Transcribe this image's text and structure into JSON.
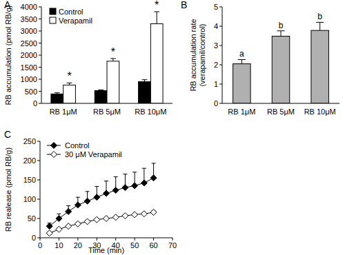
{
  "chart_data": [
    {
      "type": "bar",
      "title": "A",
      "ylabel": "RB accumulation (pmol RB/g)",
      "categories": [
        "RB 1μM",
        "RB 5μM",
        "RB 10μM"
      ],
      "series": [
        {
          "name": "Control",
          "color": "#000000",
          "values": [
            390,
            530,
            900
          ],
          "errors": [
            50,
            30,
            80
          ]
        },
        {
          "name": "Verapamil",
          "color": "#ffffff",
          "values": [
            760,
            1750,
            3300
          ],
          "errors": [
            90,
            110,
            500
          ],
          "annotations": [
            "*",
            "*",
            "*"
          ]
        }
      ],
      "ylim": [
        0,
        4000
      ],
      "yticks": [
        0,
        500,
        1000,
        1500,
        2000,
        2500,
        3000,
        3500,
        4000
      ],
      "legend": "upper-left",
      "grid": false
    },
    {
      "type": "bar",
      "title": "B",
      "ylabel": [
        "RB accumulation rate",
        "(verapamil/control)"
      ],
      "categories": [
        "RB 1μM",
        "RB 5μM",
        "RB 10μM"
      ],
      "series": [
        {
          "color": "#b0b0b0",
          "values": [
            2.05,
            3.48,
            3.78
          ],
          "errors": [
            0.22,
            0.28,
            0.42
          ],
          "annotations": [
            "a",
            "b",
            "b"
          ]
        }
      ],
      "ylim": [
        0,
        5
      ],
      "yticks": [
        0,
        1,
        2,
        3,
        4,
        5
      ],
      "grid": false
    },
    {
      "type": "line",
      "title": "C",
      "xlabel": "Time (min)",
      "ylabel": "RB realease (pmol RB/g)",
      "x": [
        5,
        10,
        15,
        20,
        25,
        30,
        35,
        40,
        45,
        50,
        55,
        60
      ],
      "series": [
        {
          "name": "Control",
          "color": "#000000",
          "marker": "diamond",
          "line_style": "solid",
          "values": [
            30,
            50,
            68,
            85,
            95,
            105,
            115,
            123,
            130,
            135,
            142,
            155
          ],
          "errors": [
            8,
            12,
            15,
            20,
            25,
            28,
            32,
            35,
            35,
            35,
            38,
            38
          ]
        },
        {
          "name": "30 μM Verapamil",
          "color": "#ffffff",
          "marker": "diamond",
          "line_style": "solid",
          "values": [
            12,
            22,
            30,
            36,
            42,
            47,
            50,
            53,
            57,
            60,
            62,
            66
          ],
          "errors": [
            2,
            3,
            3,
            3,
            3,
            3,
            3,
            3,
            3,
            3,
            3,
            4
          ]
        }
      ],
      "xlim": [
        0,
        70
      ],
      "xticks": [
        0,
        10,
        20,
        30,
        40,
        50,
        60,
        70
      ],
      "ylim": [
        0,
        250
      ],
      "yticks": [
        0,
        50,
        100,
        150,
        200,
        250
      ],
      "legend": "upper-left",
      "grid": false
    }
  ]
}
